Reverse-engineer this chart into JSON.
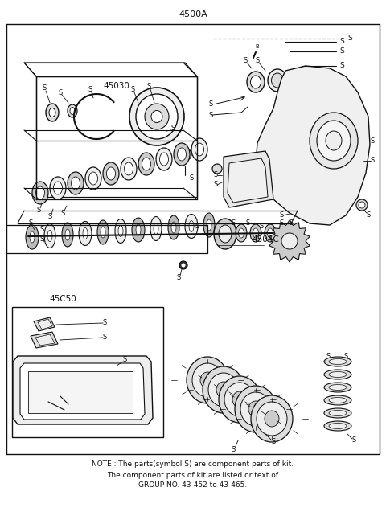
{
  "title": "4500A",
  "bg": "#ffffff",
  "lc": "#111111",
  "note1": "NOTE : The parts(symbol S) are component parts of kit.",
  "note2": "The component parts of kit are listed or text of",
  "note3": "GROUP NO. 43-452 to 43-465.",
  "label_45030": "45030",
  "label_45040": "4504C",
  "label_45050": "45C50"
}
